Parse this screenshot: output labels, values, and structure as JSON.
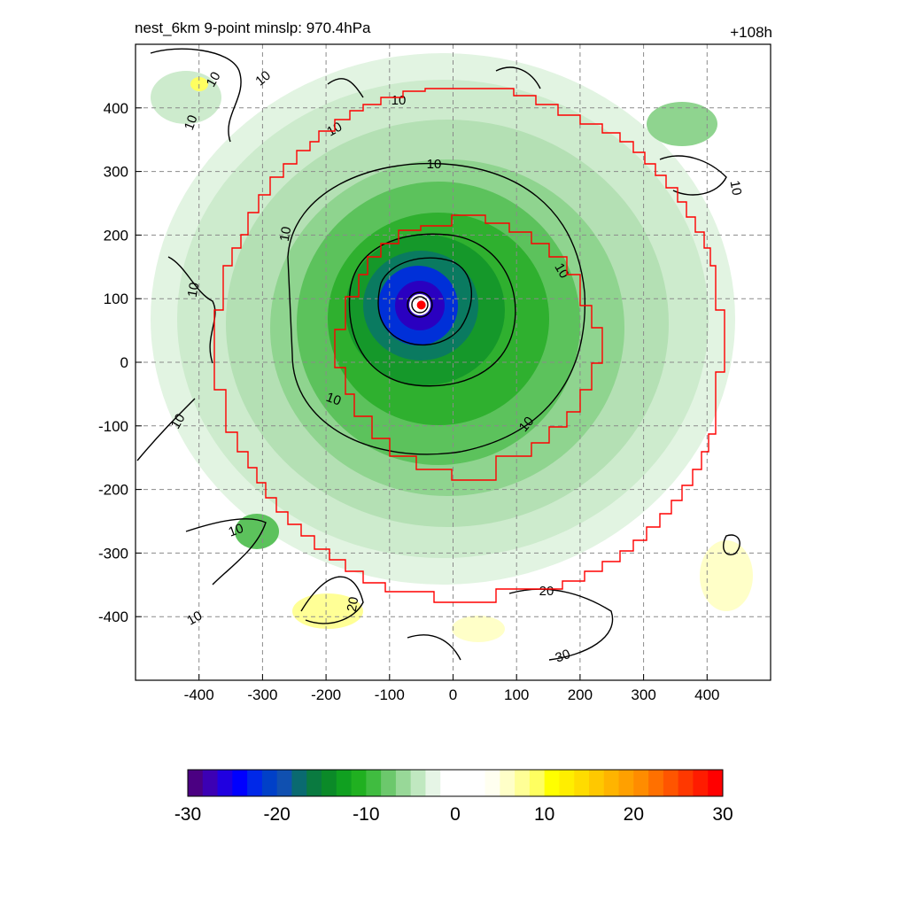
{
  "chart_data": {
    "type": "heatmap",
    "title_left": "nest_6km  9-point minslp: 970.4hPa",
    "title_right": "+108h",
    "xlim": [
      -500,
      500
    ],
    "ylim": [
      -500,
      500
    ],
    "x_ticks": [
      "-400",
      "-300",
      "-200",
      "-100",
      "0",
      "100",
      "200",
      "300",
      "400"
    ],
    "y_ticks": [
      "400",
      "300",
      "200",
      "100",
      "0",
      "-100",
      "-200",
      "-300",
      "-400"
    ],
    "grid": true,
    "storm_center": {
      "x": -50,
      "y": 90
    },
    "contour_levels": [
      10,
      20,
      30
    ],
    "contour_labels": [
      "10",
      "10",
      "10",
      "10",
      "10",
      "10",
      "10",
      "10",
      "10",
      "10",
      "10",
      "10",
      "10",
      "10",
      "20",
      "20",
      "30",
      "10"
    ],
    "colorbar": {
      "range": [
        -30,
        30
      ],
      "tick_labels": [
        "-30",
        "-20",
        "-10",
        "0",
        "10",
        "20",
        "30"
      ],
      "colors": [
        "#4b0082",
        "#3c00b4",
        "#2000e0",
        "#0000ff",
        "#0028e8",
        "#0040c8",
        "#1050b0",
        "#0a6a70",
        "#0a7a40",
        "#0b8a28",
        "#10a020",
        "#20b020",
        "#40bc40",
        "#6cc86c",
        "#98d898",
        "#c0e8c0",
        "#e6f5e6",
        "#ffffff",
        "#ffffff",
        "#ffffff",
        "#fffff0",
        "#ffffc8",
        "#ffff96",
        "#ffff60",
        "#ffff00",
        "#ffee00",
        "#ffdc00",
        "#ffc800",
        "#ffb400",
        "#ffa000",
        "#ff8c00",
        "#ff7000",
        "#ff5500",
        "#ff3800",
        "#ff1c00",
        "#ff0000"
      ]
    }
  }
}
